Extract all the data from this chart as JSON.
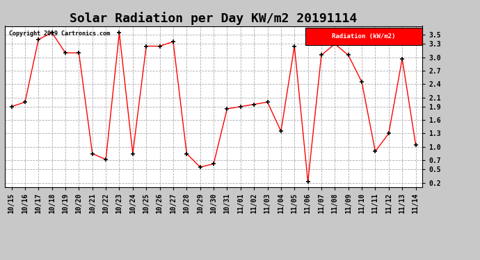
{
  "title": "Solar Radiation per Day KW/m2 20191114",
  "copyright_text": "Copyright 2019 Cartronics.com",
  "legend_label": "Radiation (kW/m2)",
  "x_labels": [
    "10/15",
    "10/16",
    "10/17",
    "10/18",
    "10/19",
    "10/20",
    "10/21",
    "10/22",
    "10/23",
    "10/24",
    "10/25",
    "10/26",
    "10/27",
    "10/28",
    "10/29",
    "10/30",
    "10/31",
    "11/01",
    "11/02",
    "11/03",
    "11/04",
    "11/05",
    "11/06",
    "11/07",
    "11/08",
    "11/09",
    "11/10",
    "11/11",
    "11/12",
    "11/13",
    "11/14"
  ],
  "y_values": [
    1.9,
    2.0,
    3.4,
    3.55,
    3.1,
    3.1,
    0.85,
    0.72,
    3.55,
    0.85,
    3.25,
    3.25,
    3.35,
    0.85,
    0.55,
    0.62,
    1.85,
    1.9,
    1.95,
    2.0,
    1.35,
    3.25,
    0.22,
    3.05,
    3.3,
    3.05,
    2.45,
    0.9,
    1.3,
    2.97,
    1.05
  ],
  "ylim": [
    0.1,
    3.7
  ],
  "yticks": [
    0.2,
    0.5,
    0.7,
    1.0,
    1.3,
    1.6,
    1.9,
    2.1,
    2.4,
    2.7,
    3.0,
    3.3,
    3.5
  ],
  "line_color": "red",
  "marker_color": "black",
  "bg_color": "#c8c8c8",
  "plot_bg_color": "#ffffff",
  "grid_color": "#aaaaaa",
  "title_fontsize": 13,
  "tick_fontsize": 7,
  "legend_bg": "red",
  "legend_text_color": "white"
}
